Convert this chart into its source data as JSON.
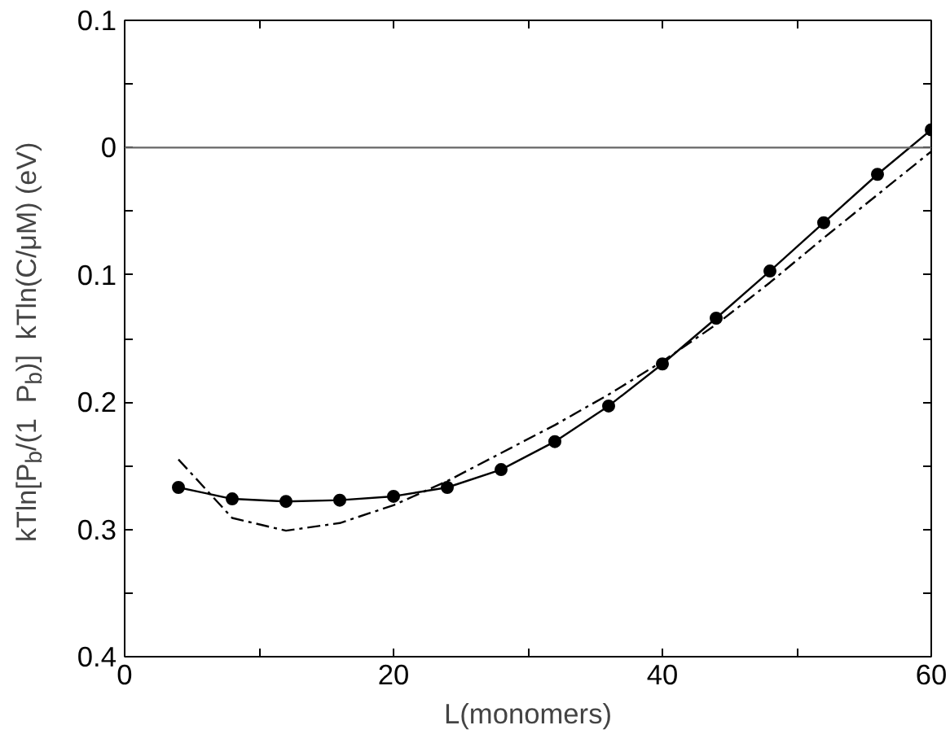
{
  "chart_data": {
    "type": "line",
    "xlabel": "L(monomers)",
    "ylabel": "kTln[P$_{b}$/(1  P$_{b}$)]  kTln(C/μM) (eV)",
    "xlim": [
      0,
      60
    ],
    "xticks": [
      0,
      {
        "value": 10,
        "label": null
      },
      20,
      {
        "value": 30,
        "label": null
      },
      40,
      {
        "value": 50,
        "label": null
      },
      60
    ],
    "ylim": [
      -0.4,
      0.1
    ],
    "yticks": [
      {
        "value": -0.4,
        "label": "0.4"
      },
      {
        "value": -0.35,
        "label": null
      },
      {
        "value": -0.3,
        "label": "0.3"
      },
      {
        "value": -0.25,
        "label": null
      },
      {
        "value": -0.2,
        "label": "0.2"
      },
      {
        "value": -0.15,
        "label": null
      },
      {
        "value": -0.1,
        "label": "0.1"
      },
      {
        "value": -0.05,
        "label": null
      },
      {
        "value": 0,
        "label": "0"
      },
      {
        "value": 0.05,
        "label": null
      },
      {
        "value": 0.1,
        "label": "0.1"
      }
    ],
    "x": [
      4,
      8,
      12,
      16,
      20,
      24,
      28,
      32,
      36,
      40,
      44,
      48,
      52,
      56,
      60
    ],
    "series": [
      {
        "color": "#000000",
        "marker": "circle",
        "line_style": "solid",
        "values": [
          -0.267,
          -0.276,
          -0.278,
          -0.277,
          -0.274,
          -0.267,
          -0.253,
          -0.231,
          -0.203,
          -0.17,
          -0.134,
          -0.097,
          -0.059,
          -0.021,
          0.014
        ]
      },
      {
        "color": "#000000",
        "marker": "none",
        "line_style": "dashdot",
        "values": [
          -0.245,
          -0.291,
          -0.301,
          -0.295,
          -0.281,
          -0.262,
          -0.24,
          -0.218,
          -0.194,
          -0.168,
          -0.139,
          -0.106,
          -0.071,
          -0.037,
          -0.003
        ]
      }
    ],
    "ref_lines": [
      {
        "axis": "y",
        "value": 0,
        "color": "#666666"
      }
    ]
  }
}
